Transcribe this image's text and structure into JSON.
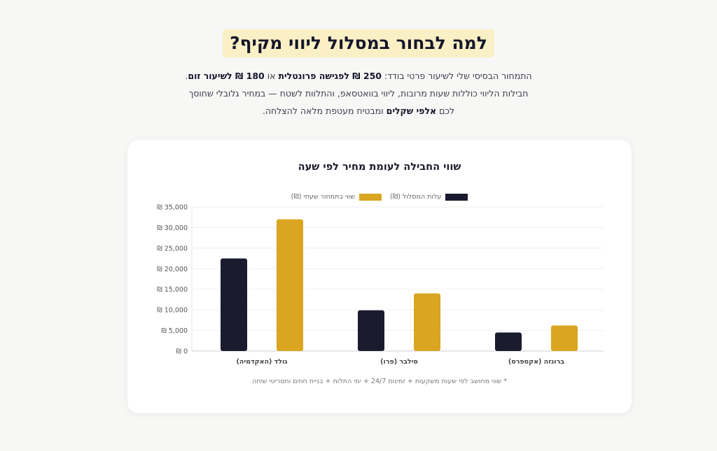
{
  "page": {
    "heading": "למה לבחור במסלול ליווי מקיף?",
    "intro": {
      "p1": "התמחור הבסיסי שלי לשיעור פרטי בודד: ",
      "b1": "250 ₪ לפגישה פרונטלית",
      "p2": " או ",
      "b2": "180 ₪ לשיעור זום",
      "p3": ". חבילות הליווי כוללות שעות מרובות, ליווי בוואטסאפ, והתלוות לשטח — במחיר גלובלי שחוסך לכם ",
      "b3": "אלפי שקלים",
      "p4": " ומבטיח מעטפת מלאה להצלחה."
    },
    "footnote": "* שווי מחושב לפי שעות משקעות + זמינות 24/7 + ימי התלות + בניית חוזים ותסריטי שיחה"
  },
  "colors": {
    "navy": "#1b1b2f",
    "gold": "#daa520"
  },
  "chart_data": {
    "type": "bar",
    "title": "שווי החבילה לעומת מחיר לפי שעה",
    "categories": [
      "ברונזה (אקספרס)",
      "סילבר (פרו)",
      "גולד (האקדמיה)"
    ],
    "series": [
      {
        "name": "עלות המסלול (₪)",
        "color": "#1b1b2f",
        "values": [
          4500,
          9900,
          22500
        ]
      },
      {
        "name": "שווי בתמחור שעתי (₪)",
        "color": "#daa520",
        "values": [
          6200,
          14000,
          32000
        ]
      }
    ],
    "ylim": [
      0,
      35000
    ],
    "yticks": [
      0,
      5000,
      10000,
      15000,
      20000,
      25000,
      30000,
      35000
    ],
    "ytick_labels": [
      "₪ 0",
      "₪ 5,000",
      "₪ 10,000",
      "₪ 15,000",
      "₪ 20,000",
      "₪ 25,000",
      "₪ 30,000",
      "₪ 35,000"
    ],
    "grid": true,
    "legend": "top"
  }
}
